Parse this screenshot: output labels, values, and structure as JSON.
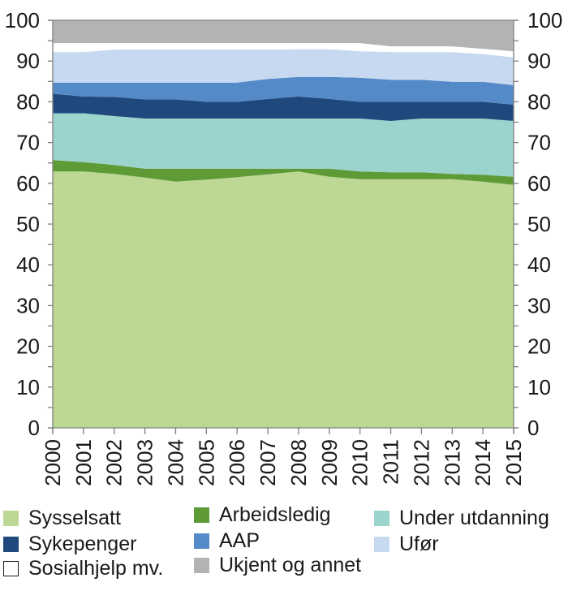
{
  "chart_data": {
    "type": "area",
    "stacked": true,
    "title": "",
    "xlabel": "",
    "ylabel": "",
    "ylim": [
      0,
      100
    ],
    "yticks": [
      0,
      10,
      20,
      30,
      40,
      50,
      60,
      70,
      80,
      90,
      100
    ],
    "ytick_labels": [
      "0",
      "10",
      "20",
      "30",
      "40",
      "50",
      "60",
      "70",
      "80",
      "90",
      "100"
    ],
    "y_axis_both_sides": true,
    "grid": false,
    "legend_position": "bottom",
    "x": [
      "2000",
      "2001",
      "2002",
      "2003",
      "2004",
      "2005",
      "2006",
      "2007",
      "2008",
      "2009",
      "2010",
      "2011",
      "2012",
      "2013",
      "2014",
      "2015"
    ],
    "series": [
      {
        "name": "Sysselsatt",
        "color": "#bdd795",
        "values": [
          62.9,
          62.9,
          62.3,
          61.4,
          60.4,
          60.9,
          61.5,
          62.2,
          62.9,
          61.6,
          61.0,
          61.0,
          61.0,
          61.0,
          60.4,
          59.6
        ]
      },
      {
        "name": "Arbeidsledig",
        "color": "#5e9a35",
        "values": [
          2.8,
          2.3,
          2.2,
          2.2,
          3.2,
          2.7,
          2.1,
          1.4,
          0.7,
          2.0,
          1.9,
          1.7,
          1.7,
          1.3,
          1.7,
          2.0
        ]
      },
      {
        "name": "Under utdanning",
        "color": "#9ad4cd",
        "values": [
          11.5,
          12.0,
          12.0,
          12.3,
          12.3,
          12.3,
          12.3,
          12.3,
          12.3,
          12.3,
          13.0,
          12.6,
          13.2,
          13.6,
          13.8,
          13.7
        ]
      },
      {
        "name": "Sykepenger",
        "color": "#1f497d",
        "values": [
          4.8,
          4.1,
          4.7,
          4.7,
          4.7,
          4.1,
          4.1,
          4.8,
          5.4,
          4.8,
          4.1,
          4.7,
          4.1,
          4.1,
          4.1,
          4.0
        ]
      },
      {
        "name": "AAP",
        "color": "#558ac8",
        "values": [
          2.7,
          3.4,
          3.5,
          4.1,
          4.1,
          4.7,
          4.7,
          4.9,
          4.8,
          5.4,
          5.9,
          5.4,
          5.4,
          4.9,
          4.9,
          4.8
        ]
      },
      {
        "name": "Ufør",
        "color": "#c6d9f1",
        "values": [
          7.5,
          7.5,
          8.1,
          8.1,
          8.1,
          8.1,
          8.1,
          7.2,
          6.8,
          6.8,
          6.5,
          6.8,
          6.8,
          7.3,
          6.8,
          6.8
        ]
      },
      {
        "name": "Sosialhjelp mv.",
        "color": "#ffffff",
        "values": [
          2.2,
          2.2,
          1.6,
          1.6,
          1.6,
          1.6,
          1.6,
          1.6,
          1.5,
          1.5,
          2.0,
          1.4,
          1.4,
          1.4,
          1.3,
          1.5
        ]
      },
      {
        "name": "Ukjent og annet",
        "color": "#b3b3b3",
        "values": [
          5.6,
          5.6,
          5.6,
          5.6,
          5.6,
          5.6,
          5.6,
          5.6,
          5.6,
          5.6,
          5.6,
          6.4,
          6.4,
          6.4,
          7.0,
          7.6
        ]
      }
    ]
  },
  "legend": {
    "items": [
      {
        "label": "Sysselsatt",
        "color": "#bdd795"
      },
      {
        "label": "Arbeidsledig",
        "color": "#5e9a35"
      },
      {
        "label": "Under utdanning",
        "color": "#9ad4cd"
      },
      {
        "label": "Sykepenger",
        "color": "#1f497d"
      },
      {
        "label": "AAP",
        "color": "#558ac8"
      },
      {
        "label": "Ufør",
        "color": "#c6d9f1"
      },
      {
        "label": "Sosialhjelp mv.",
        "color": "#ffffff"
      },
      {
        "label": "Ukjent og annet",
        "color": "#b3b3b3"
      }
    ]
  }
}
